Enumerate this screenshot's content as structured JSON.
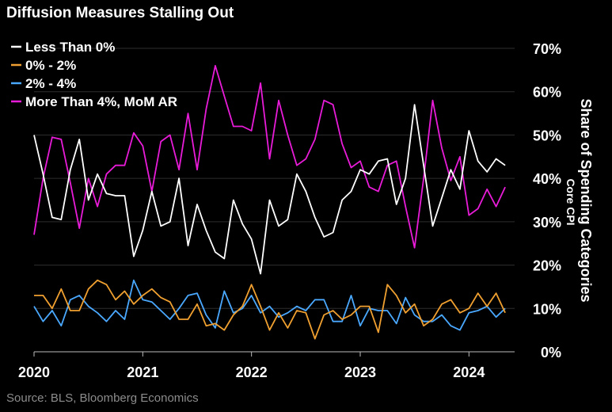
{
  "chart_data": {
    "type": "line",
    "title": "Diffusion Measures Stalling Out",
    "source": "Source: BLS, Bloomberg Economics",
    "ylabel": "Share of Spending Categories",
    "ylabel_sub": "Core CPI",
    "ylim": [
      0,
      70
    ],
    "yticks": [
      0,
      10,
      20,
      30,
      40,
      50,
      60,
      70
    ],
    "ytick_labels": [
      "0%",
      "10%",
      "20%",
      "30%",
      "40%",
      "50%",
      "60%",
      "70%"
    ],
    "xlim": [
      2020.0,
      2024.42
    ],
    "xticks": [
      2020,
      2021,
      2022,
      2023,
      2024
    ],
    "xtick_labels": [
      "2020",
      "2021",
      "2022",
      "2023",
      "2024"
    ],
    "legend_position": "top-left",
    "series": [
      {
        "name": "Less Than 0%",
        "color": "#ffffff",
        "start": 2020.0,
        "step": 0.08333,
        "values": [
          50,
          41,
          31,
          30.5,
          42,
          49,
          35,
          41,
          36.5,
          36,
          36,
          22,
          28,
          37,
          29,
          30,
          40,
          24.5,
          34,
          28,
          23,
          21.5,
          35,
          29.5,
          26,
          18,
          35,
          29,
          30.5,
          41,
          37,
          31,
          26.5,
          27.5,
          35,
          37,
          42,
          41,
          44,
          44.5,
          34,
          40,
          57,
          43,
          29,
          35.5,
          42,
          37.5,
          51,
          44,
          41.5,
          44.5,
          43
        ]
      },
      {
        "name": "0% - 2%",
        "color": "#f0a030",
        "start": 2020.0,
        "step": 0.08333,
        "values": [
          13,
          13,
          10,
          14.5,
          9.5,
          9.5,
          14.5,
          16.5,
          15.5,
          12,
          14,
          11,
          13,
          14.5,
          12.5,
          11.5,
          7.5,
          7.5,
          11,
          6,
          6.5,
          5,
          8.5,
          10.5,
          15.5,
          10.5,
          5,
          9,
          5.5,
          9.5,
          9,
          3,
          8.5,
          9.5,
          7.5,
          8.5,
          10.5,
          10.5,
          4.5,
          15.5,
          13,
          9,
          11,
          6,
          7.5,
          11,
          12,
          9,
          10,
          13.5,
          10.5,
          13.5,
          9
        ]
      },
      {
        "name": "2% - 4%",
        "color": "#4aa8ff",
        "start": 2020.0,
        "step": 0.08333,
        "values": [
          10.5,
          7,
          9.5,
          6,
          12,
          13,
          10.5,
          9,
          7,
          9.5,
          7.5,
          16.5,
          12,
          11.5,
          9.5,
          7.5,
          10,
          13,
          13.5,
          8.5,
          5.5,
          14,
          9,
          10,
          13,
          9,
          10.5,
          8,
          9,
          10.5,
          9.5,
          12,
          12,
          7,
          7,
          13,
          6,
          10,
          9.5,
          9.5,
          6.5,
          12.5,
          8.5,
          7,
          7,
          8.5,
          6,
          5,
          9,
          9.5,
          10.5,
          8,
          10
        ]
      },
      {
        "name": "More Than 4%, MoM AR",
        "color": "#e81cd8",
        "start": 2020.0,
        "step": 0.08333,
        "values": [
          27,
          40,
          49.5,
          49,
          39,
          28.5,
          40,
          33.5,
          41,
          43,
          43,
          50.5,
          47.5,
          37,
          48.5,
          50,
          42,
          55,
          42,
          56,
          66,
          59,
          52,
          52,
          51,
          62,
          44.5,
          58,
          50,
          43,
          44.5,
          49,
          58,
          57,
          48,
          42.5,
          44,
          38,
          37,
          43,
          44,
          33.5,
          24,
          40,
          58,
          47,
          39.5,
          45,
          31.5,
          33,
          37.5,
          33.5,
          38
        ]
      }
    ]
  }
}
